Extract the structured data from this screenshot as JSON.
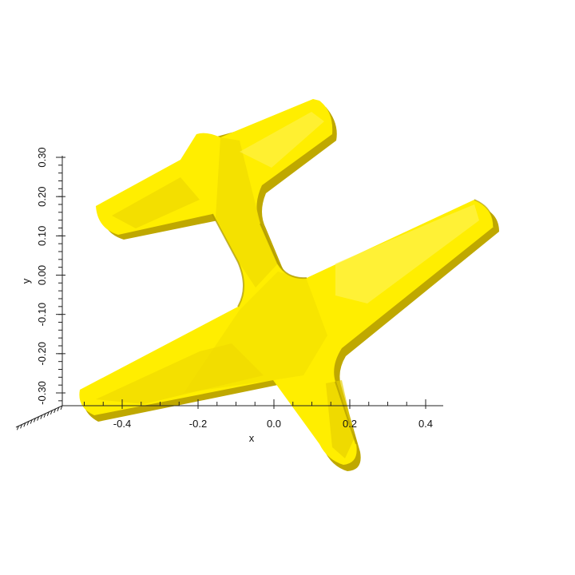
{
  "view": {
    "background": "#ffffff",
    "axis_color": "#222222",
    "mesh_color": "#ffee00",
    "mesh_shadow_color": "#c9b200",
    "mesh_highlight_color": "#fff566"
  },
  "axes": {
    "x": {
      "title": "x",
      "ticks": [
        {
          "value": -0.4,
          "label": "-0.4"
        },
        {
          "value": -0.2,
          "label": "-0.2"
        },
        {
          "value": 0.0,
          "label": "0.0"
        },
        {
          "value": 0.2,
          "label": "0.2"
        },
        {
          "value": 0.4,
          "label": "0.4"
        }
      ]
    },
    "y": {
      "title": "y",
      "ticks": [
        {
          "value": -0.3,
          "label": "-0.30"
        },
        {
          "value": -0.2,
          "label": "-0.20"
        },
        {
          "value": -0.1,
          "label": "-0.10"
        },
        {
          "value": 0.0,
          "label": "0.00"
        },
        {
          "value": 0.1,
          "label": "0.10"
        },
        {
          "value": 0.2,
          "label": "0.20"
        },
        {
          "value": 0.3,
          "label": "0.30"
        }
      ]
    }
  },
  "object": {
    "name": "airplane mesh",
    "color": "#ffee00"
  }
}
